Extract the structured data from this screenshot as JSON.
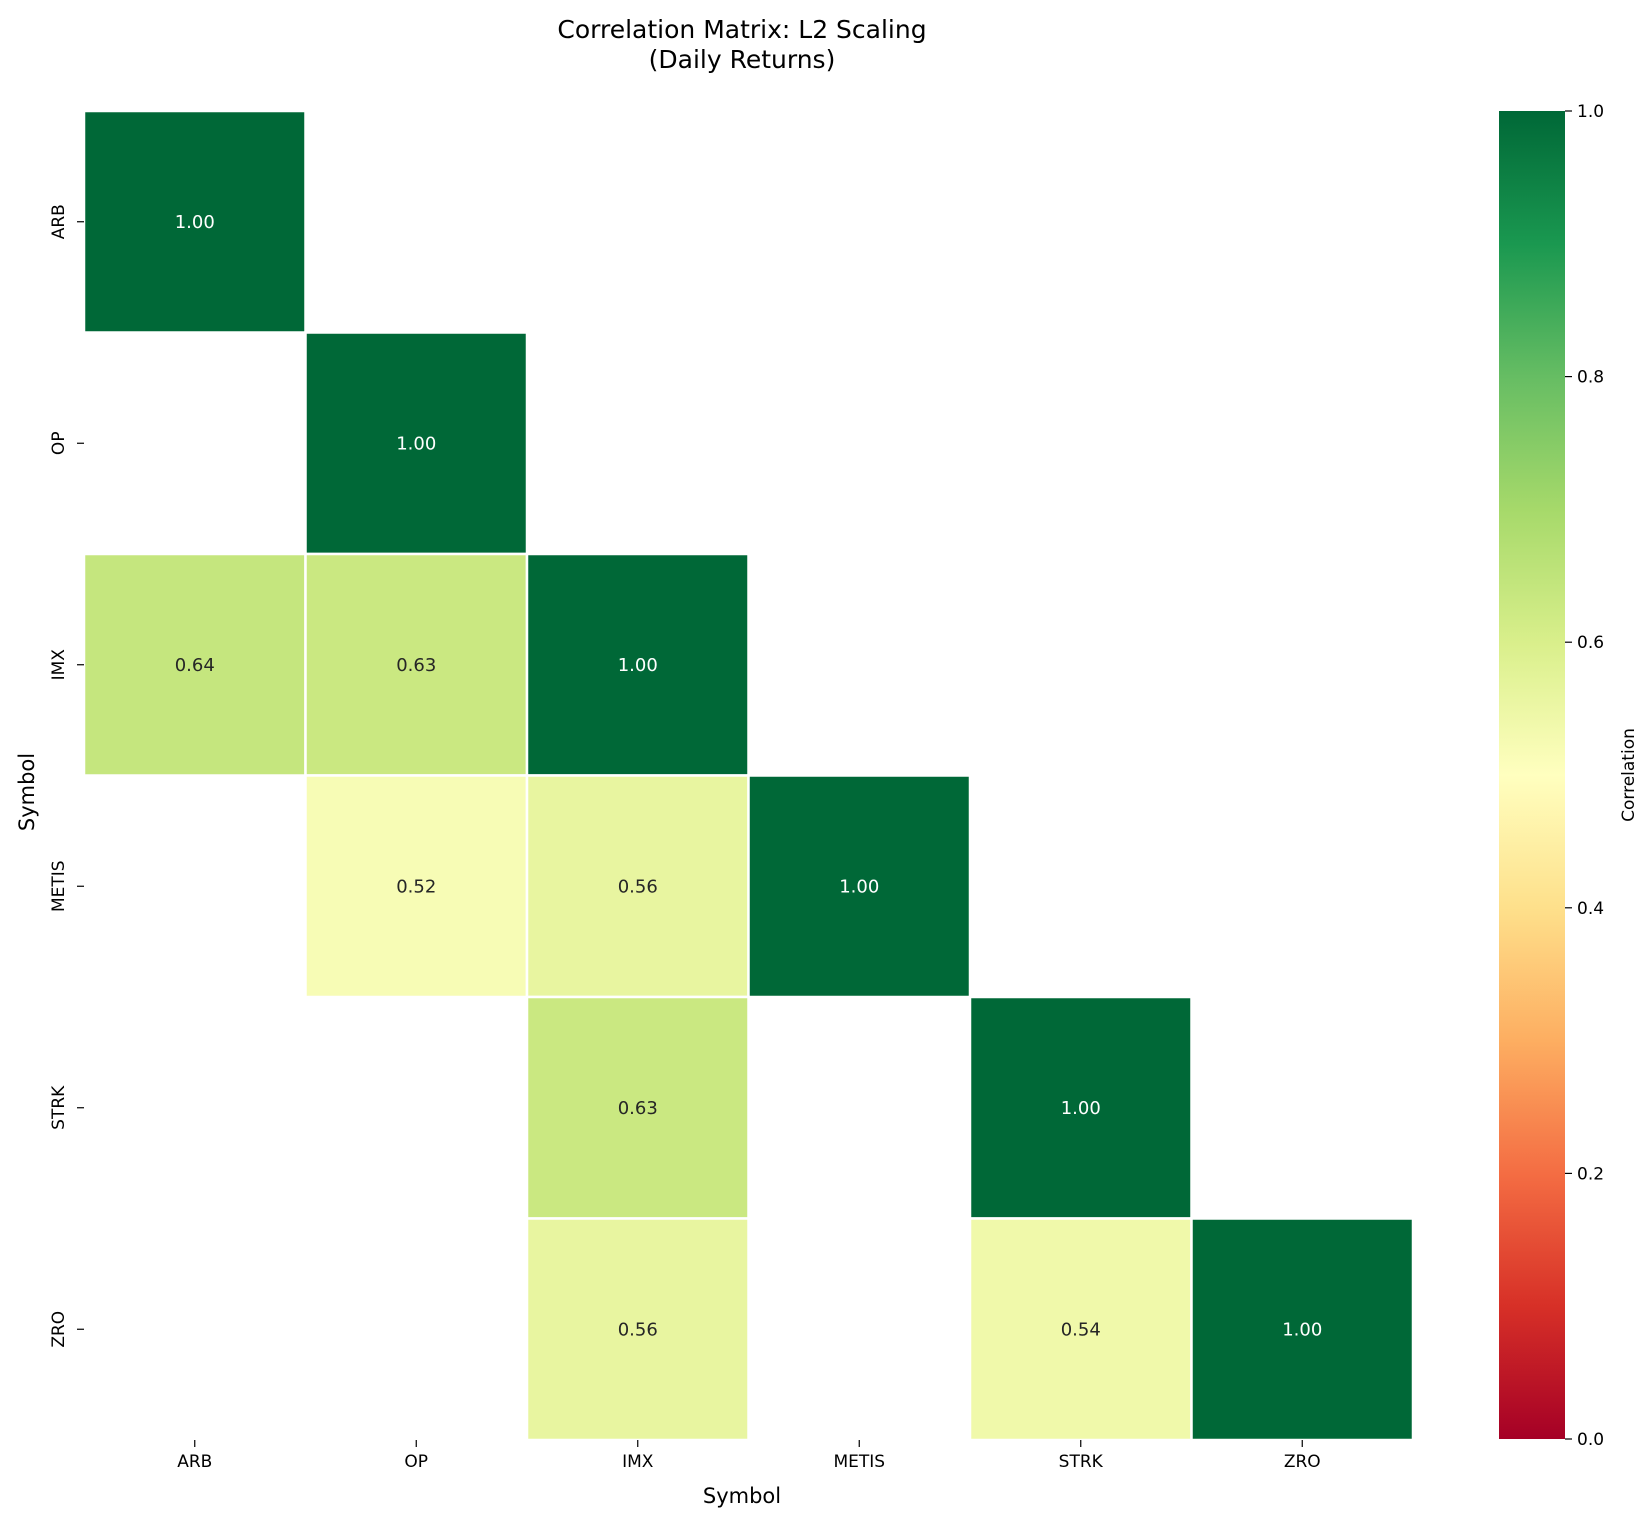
{
  "chart_data": {
    "type": "heatmap",
    "title": "Correlation Matrix: L2 Scaling",
    "subtitle": "(Daily Returns)",
    "xlabel": "Symbol",
    "ylabel": "Symbol",
    "rows": [
      "ARB",
      "OP",
      "IMX",
      "METIS",
      "STRK",
      "ZRO"
    ],
    "cols": [
      "ARB",
      "OP",
      "IMX",
      "METIS",
      "STRK",
      "ZRO"
    ],
    "cells": [
      {
        "row": 0,
        "col": 0,
        "value": 1.0,
        "label": "1.00"
      },
      {
        "row": 1,
        "col": 1,
        "value": 1.0,
        "label": "1.00"
      },
      {
        "row": 2,
        "col": 0,
        "value": 0.64,
        "label": "0.64"
      },
      {
        "row": 2,
        "col": 1,
        "value": 0.63,
        "label": "0.63"
      },
      {
        "row": 2,
        "col": 2,
        "value": 1.0,
        "label": "1.00"
      },
      {
        "row": 3,
        "col": 1,
        "value": 0.52,
        "label": "0.52"
      },
      {
        "row": 3,
        "col": 2,
        "value": 0.56,
        "label": "0.56"
      },
      {
        "row": 3,
        "col": 3,
        "value": 1.0,
        "label": "1.00"
      },
      {
        "row": 4,
        "col": 2,
        "value": 0.63,
        "label": "0.63"
      },
      {
        "row": 4,
        "col": 4,
        "value": 1.0,
        "label": "1.00"
      },
      {
        "row": 5,
        "col": 2,
        "value": 0.56,
        "label": "0.56"
      },
      {
        "row": 5,
        "col": 4,
        "value": 0.54,
        "label": "0.54"
      },
      {
        "row": 5,
        "col": 5,
        "value": 1.0,
        "label": "1.00"
      }
    ],
    "colorbar": {
      "label": "Correlation",
      "range": [
        0,
        1
      ],
      "ticks": [
        "0.0",
        "0.2",
        "0.4",
        "0.6",
        "0.8",
        "1.0"
      ],
      "colormap": "RdYlGn",
      "colormap_stops": [
        "#a50026",
        "#d73027",
        "#f46d43",
        "#fdae61",
        "#fee08b",
        "#ffffbf",
        "#d9ef8b",
        "#a6d96a",
        "#66bd63",
        "#1a9850",
        "#006837"
      ]
    },
    "grid": false
  }
}
